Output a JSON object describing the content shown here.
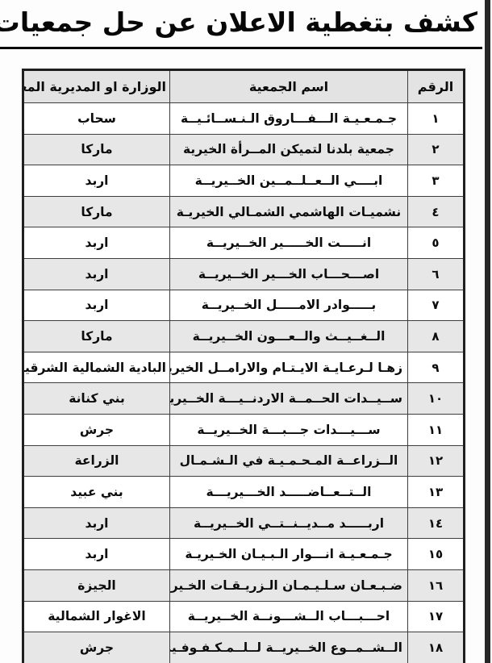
{
  "page": {
    "title": "كشف بتغطية الاعلان عن حل جمعيات"
  },
  "table": {
    "headers": {
      "num": "الرقم",
      "name": "اسم الجمعية",
      "ministry": "الوزارة او المديرية المعنية"
    },
    "rows": [
      {
        "num": "١",
        "name": "جـمـعـيـة الـــفـــاروق الـنـســائـيــة",
        "ministry": "سحاب"
      },
      {
        "num": "٢",
        "name": "جمعية بلدنا لتميكن المــرأة الخيرية",
        "ministry": "ماركا"
      },
      {
        "num": "٣",
        "name": "ابــــي الــعــلــمــين الخــيريــة",
        "ministry": "اربد"
      },
      {
        "num": "٤",
        "name": "نشميـات الهاشمي الشمـالي الخيريـة",
        "ministry": "ماركا"
      },
      {
        "num": "٥",
        "name": "انـــــت الخـــــير الخــيريــة",
        "ministry": "اربد"
      },
      {
        "num": "٦",
        "name": "اصـــحـــاب الخـــير الخــيريــة",
        "ministry": "اربد"
      },
      {
        "num": "٧",
        "name": "بـــــوادر الامـــــل الخــيريــة",
        "ministry": "اربد"
      },
      {
        "num": "٨",
        "name": "الــغــيــث والــعـــون الخــيريــة",
        "ministry": "ماركا"
      },
      {
        "num": "٩",
        "name": "زهـا لـرعـايـة الايـتـام والارامــل الخيريـة",
        "ministry": "البادية الشمالية الشرقية"
      },
      {
        "num": "١٠",
        "name": "ســيــدات الحــمــة الاردنــيـــة الخــيريــة",
        "ministry": "بني كنانة"
      },
      {
        "num": "١١",
        "name": "ســـيـــدات جـــبـــة الخــيريــة",
        "ministry": "جرش"
      },
      {
        "num": "١٢",
        "name": "الــزراعــة المـحـمـيـة في الـشـمـال",
        "ministry": "الزراعة"
      },
      {
        "num": "١٣",
        "name": "الــتــعــاضـــــد الخـــيريـــة",
        "ministry": "بني عبيد"
      },
      {
        "num": "١٤",
        "name": "اربـــــد مــديــنــتــي الخــيريــة",
        "ministry": "اربد"
      },
      {
        "num": "١٥",
        "name": "جـمـعـيـة انـــوار الـبـيـان الخـيريـة",
        "ministry": "اربد"
      },
      {
        "num": "١٦",
        "name": "ضـبـعـان سـلـيـمـان الـزريـقـات الخـيريـة",
        "ministry": "الجيزة"
      },
      {
        "num": "١٧",
        "name": "احـــبـــاب الــشـــونــة الخــيريــة",
        "ministry": "الاغوار الشمالية"
      },
      {
        "num": "١٨",
        "name": "الــشــمــوع الخــيريــة لــلــمـكـفـوفـين",
        "ministry": "جرش"
      }
    ]
  },
  "colors": {
    "header_bg": "#e3e3e3",
    "alt_row_bg": "#e7e7e7",
    "border": "#3d3d3d",
    "outer": "#1f1f1f",
    "edge": "#262626",
    "ink": "#0c0c0c",
    "paper": "#fdfdfd"
  }
}
